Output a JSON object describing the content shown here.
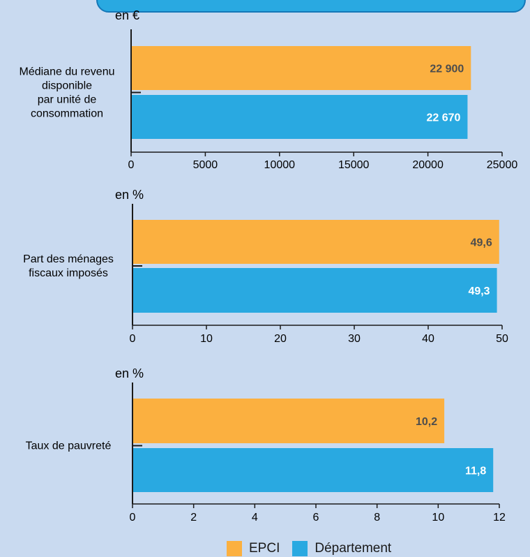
{
  "colors": {
    "epci": "#fbb040",
    "departement": "#29a9e1",
    "axis": "#1a1a1a",
    "value_epci_text": "#4d4d4d",
    "value_dept_text": "#ffffff"
  },
  "legend": {
    "epci": "EPCI",
    "departement": "Département"
  },
  "chart_data": [
    {
      "type": "bar",
      "orientation": "horizontal",
      "unit_label": "en €",
      "categories": [
        "Médiane du revenu disponible par unité de consommation"
      ],
      "category_lines": [
        "Médiane du revenu",
        "disponible",
        "par unité de",
        "consommation"
      ],
      "series": [
        {
          "name": "EPCI",
          "values": [
            22900
          ],
          "labels": [
            "22 900"
          ]
        },
        {
          "name": "Département",
          "values": [
            22670
          ],
          "labels": [
            "22 670"
          ]
        }
      ],
      "xlim": [
        0,
        25000
      ],
      "xticks": [
        "0",
        "5000",
        "10000",
        "15000",
        "20000",
        "25000"
      ]
    },
    {
      "type": "bar",
      "orientation": "horizontal",
      "unit_label": "en %",
      "categories": [
        "Part des ménages fiscaux imposés"
      ],
      "category_lines": [
        "Part des ménages",
        "fiscaux imposés"
      ],
      "series": [
        {
          "name": "EPCI",
          "values": [
            49.6
          ],
          "labels": [
            "49,6"
          ]
        },
        {
          "name": "Département",
          "values": [
            49.3
          ],
          "labels": [
            "49,3"
          ]
        }
      ],
      "xlim": [
        0,
        50
      ],
      "xticks": [
        "0",
        "10",
        "20",
        "30",
        "40",
        "50"
      ]
    },
    {
      "type": "bar",
      "orientation": "horizontal",
      "unit_label": "en %",
      "categories": [
        "Taux de pauvreté"
      ],
      "category_lines": [
        "Taux de pauvreté"
      ],
      "series": [
        {
          "name": "EPCI",
          "values": [
            10.2
          ],
          "labels": [
            "10,2"
          ]
        },
        {
          "name": "Département",
          "values": [
            11.8
          ],
          "labels": [
            "11,8"
          ]
        }
      ],
      "xlim": [
        0,
        12
      ],
      "xticks": [
        "0",
        "2",
        "4",
        "6",
        "8",
        "10",
        "12"
      ]
    }
  ]
}
